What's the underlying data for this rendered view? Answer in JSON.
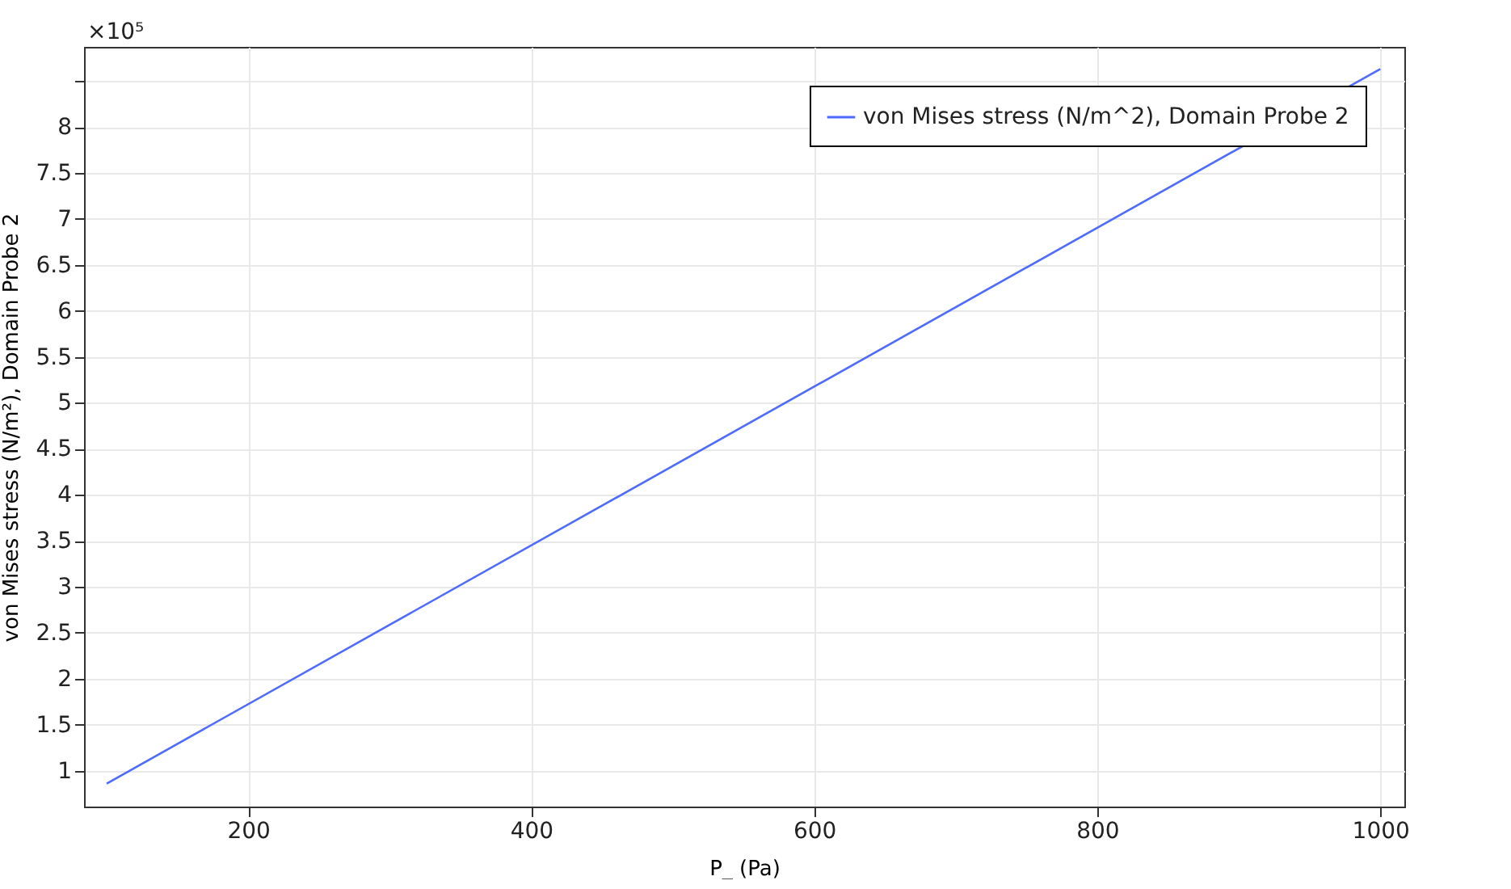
{
  "chart_data": {
    "type": "line",
    "x": [
      100,
      1000
    ],
    "series": [
      {
        "name": "von Mises stress (N/m^2), Domain Probe 2",
        "color": "#4d6bfe",
        "values": [
          0.86,
          8.63
        ]
      }
    ],
    "xlabel": "P_ (Pa)",
    "ylabel": "von Mises stress (N/m²), Domain Probe 2",
    "xlim": [
      84,
      1017
    ],
    "xticks": [
      200,
      400,
      600,
      800,
      1000
    ],
    "ylim": [
      0.61,
      8.87
    ],
    "yticks": [
      1,
      1.5,
      2,
      2.5,
      3,
      3.5,
      4,
      4.5,
      5,
      5.5,
      6,
      6.5,
      7,
      7.5,
      8,
      {
        "value": 8.5,
        "label": null
      }
    ],
    "annotations": [
      "×10⁵"
    ],
    "grid": true,
    "legend": "top right",
    "marker": "none",
    "line_style": "solid"
  }
}
